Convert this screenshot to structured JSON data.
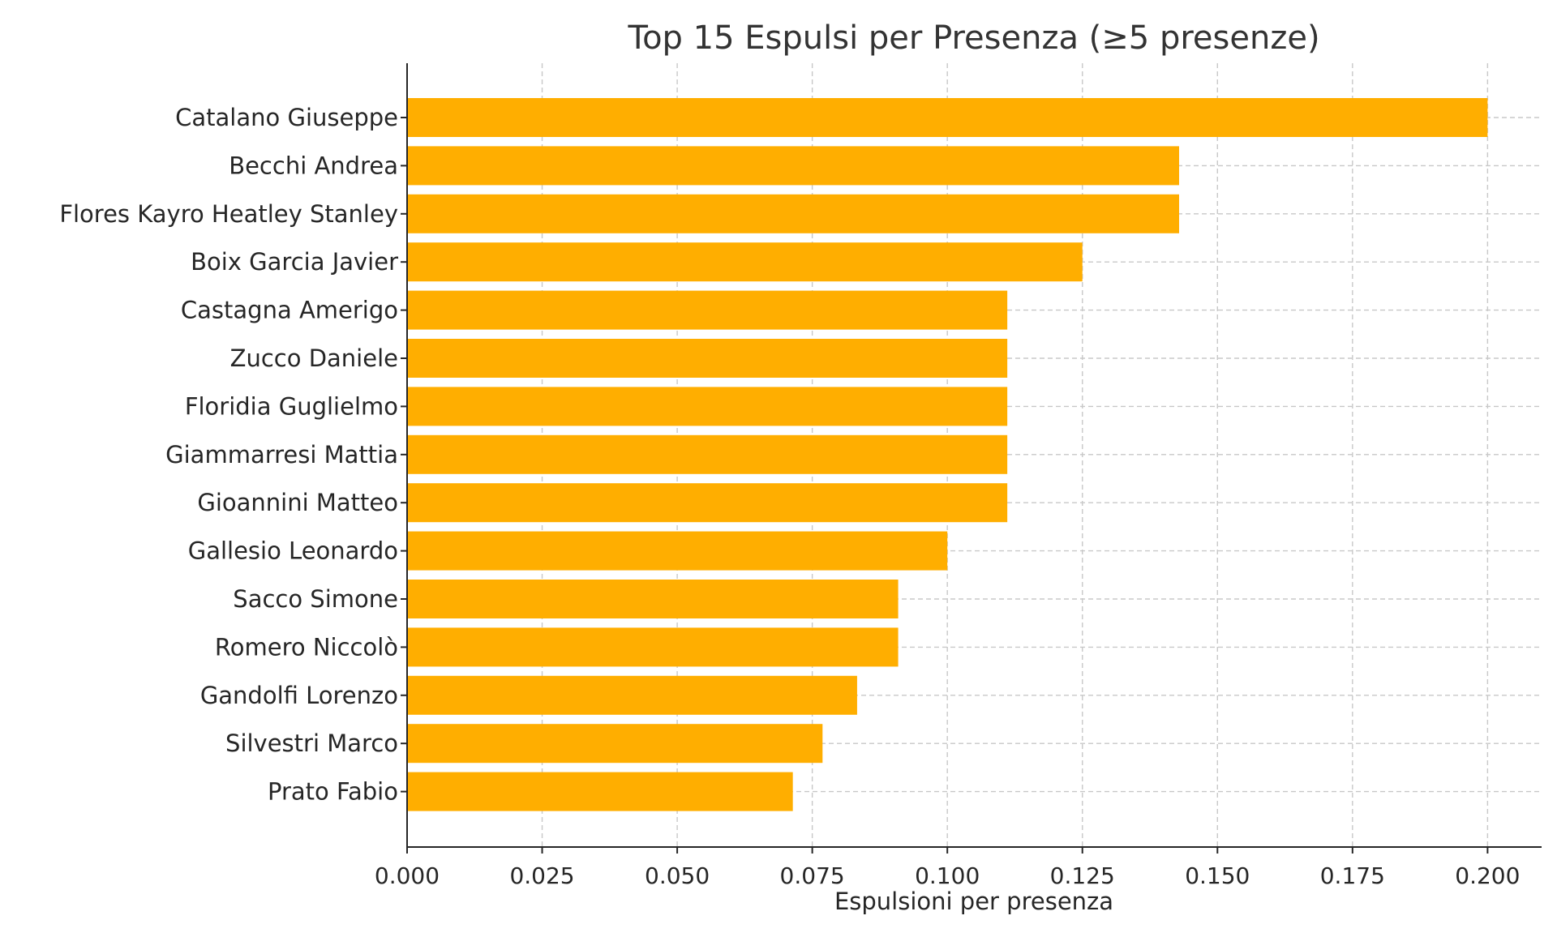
{
  "chart_data": {
    "type": "bar",
    "orientation": "horizontal",
    "title": "Top 15 Espulsi per Presenza (≥5 presenze)",
    "xlabel": "Espulsioni per presenza",
    "ylabel": "",
    "xlim": [
      0,
      0.21
    ],
    "xticks": [
      "0.000",
      "0.025",
      "0.050",
      "0.075",
      "0.100",
      "0.125",
      "0.150",
      "0.175",
      "0.200"
    ],
    "xtick_values": [
      0,
      0.025,
      0.05,
      0.075,
      0.1,
      0.125,
      0.15,
      0.175,
      0.2
    ],
    "grid": true,
    "bar_color": "#FFAE00",
    "categories": [
      "Catalano Giuseppe",
      "Becchi Andrea",
      "Flores Kayro Heatley Stanley",
      "Boix Garcia Javier",
      "Castagna Amerigo",
      "Zucco Daniele",
      "Floridia Guglielmo",
      "Giammarresi Mattia",
      "Gioannini Matteo",
      "Gallesio Leonardo",
      "Sacco Simone",
      "Romero Niccolò",
      "Gandolfi Lorenzo",
      "Silvestri Marco",
      "Prato Fabio"
    ],
    "values": [
      0.2,
      0.1429,
      0.1429,
      0.125,
      0.1111,
      0.1111,
      0.1111,
      0.1111,
      0.1111,
      0.1,
      0.0909,
      0.0909,
      0.0833,
      0.0769,
      0.0714
    ]
  }
}
